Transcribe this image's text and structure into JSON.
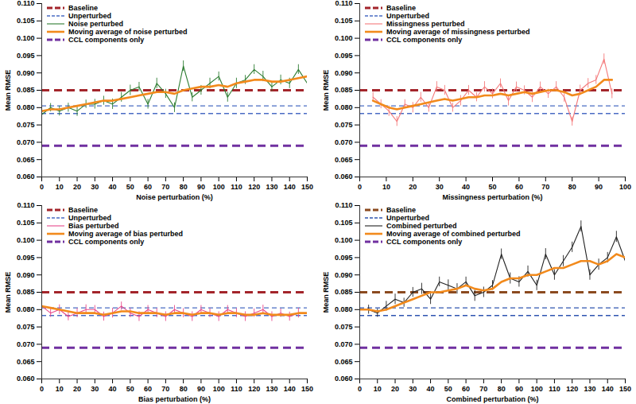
{
  "chart_data": [
    {
      "type": "line",
      "xlabel": "Noise perturbation (%)",
      "ylabel": "Mean RMSE",
      "legend": "top-left",
      "xlim": [
        0,
        150
      ],
      "xticks": [
        0,
        10,
        20,
        30,
        40,
        50,
        60,
        70,
        80,
        90,
        100,
        110,
        120,
        130,
        140,
        150
      ],
      "ylim": [
        0.06,
        0.11
      ],
      "yticks": [
        {
          "value": 0.06,
          "label": "0.060"
        },
        0.065,
        {
          "value": 0.07,
          "label": "0.070"
        },
        0.075,
        {
          "value": 0.08,
          "label": "0.080"
        },
        0.085,
        {
          "value": 0.09,
          "label": "0.090"
        },
        0.095,
        {
          "value": 0.1,
          "label": "0.100"
        },
        0.105,
        {
          "value": 0.11,
          "label": "0.110"
        }
      ],
      "series": [
        {
          "name": "Baseline",
          "type": "hline",
          "values": [
            0.085
          ],
          "color": "#a3252b",
          "line_style": "heavy_dashed"
        },
        {
          "name": "Unperturbed",
          "type": "hline",
          "values": [
            0.0805,
            0.0783
          ],
          "color": "#4a6cc4",
          "line_style": "dashed"
        },
        {
          "name": "Noise perturbed",
          "type": "line",
          "color": "#2e7d32",
          "line_style": "solid",
          "x": [
            0,
            5,
            10,
            15,
            20,
            25,
            30,
            35,
            40,
            45,
            50,
            55,
            60,
            65,
            70,
            75,
            80,
            85,
            90,
            95,
            100,
            105,
            110,
            115,
            120,
            125,
            130,
            135,
            140,
            145,
            150
          ],
          "values": [
            0.078,
            0.08,
            0.079,
            0.08,
            0.079,
            0.081,
            0.081,
            0.082,
            0.081,
            0.083,
            0.085,
            0.086,
            0.081,
            0.087,
            0.084,
            0.08,
            0.092,
            0.083,
            0.085,
            0.087,
            0.089,
            0.083,
            0.087,
            0.088,
            0.091,
            0.089,
            0.086,
            0.088,
            0.087,
            0.091,
            0.087
          ],
          "errors": [
            0.0015,
            0.0012,
            0.0014,
            0.0013,
            0.0015,
            0.0012,
            0.0014,
            0.0013,
            0.0015,
            0.0014,
            0.0015,
            0.0013,
            0.0014,
            0.0015,
            0.0013,
            0.0014,
            0.0015,
            0.0013,
            0.0014,
            0.0015,
            0.0013,
            0.0014,
            0.0015,
            0.0013,
            0.0014,
            0.0015,
            0.0013,
            0.0014,
            0.0015,
            0.0014,
            0.0015
          ]
        },
        {
          "name": "Moving average of noise perturbed",
          "type": "line",
          "color": "#f28a1c",
          "line_style": "thick",
          "x": [
            0,
            5,
            10,
            15,
            20,
            25,
            30,
            35,
            40,
            45,
            50,
            55,
            60,
            65,
            70,
            75,
            80,
            85,
            90,
            95,
            100,
            105,
            110,
            115,
            120,
            125,
            130,
            135,
            140,
            145,
            150
          ],
          "values": [
            0.079,
            0.0795,
            0.0795,
            0.08,
            0.0805,
            0.081,
            0.0815,
            0.082,
            0.082,
            0.0825,
            0.083,
            0.0835,
            0.084,
            0.0845,
            0.0845,
            0.084,
            0.085,
            0.0855,
            0.086,
            0.086,
            0.0865,
            0.086,
            0.087,
            0.0875,
            0.088,
            0.088,
            0.0875,
            0.0875,
            0.088,
            0.0885,
            0.089
          ]
        },
        {
          "name": "CCL components only",
          "type": "hline",
          "values": [
            0.069
          ],
          "color": "#7030a0",
          "line_style": "heavy_dashed"
        }
      ]
    },
    {
      "type": "line",
      "xlabel": "Missingness perturbation (%)",
      "ylabel": "Mean RMSE",
      "legend": "top-left",
      "xlim": [
        0,
        100
      ],
      "xticks": [
        0,
        10,
        20,
        30,
        40,
        50,
        60,
        70,
        80,
        90,
        100
      ],
      "ylim": [
        0.06,
        0.11
      ],
      "yticks": [
        {
          "value": 0.06,
          "label": "0.060"
        },
        0.065,
        {
          "value": 0.07,
          "label": "0.070"
        },
        0.075,
        {
          "value": 0.08,
          "label": "0.080"
        },
        0.085,
        {
          "value": 0.09,
          "label": "0.090"
        },
        0.095,
        {
          "value": 0.1,
          "label": "0.100"
        },
        0.105,
        {
          "value": 0.11,
          "label": "0.110"
        }
      ],
      "series": [
        {
          "name": "Baseline",
          "type": "hline",
          "values": [
            0.085
          ],
          "color": "#a3252b",
          "line_style": "heavy_dashed"
        },
        {
          "name": "Unperturbed",
          "type": "hline",
          "values": [
            0.0805,
            0.0783
          ],
          "color": "#4a6cc4",
          "line_style": "dashed"
        },
        {
          "name": "Missingness perturbed",
          "type": "line",
          "color": "#f4797a",
          "line_style": "solid",
          "x": [
            5,
            8,
            11,
            14,
            17,
            20,
            23,
            26,
            29,
            32,
            35,
            38,
            41,
            44,
            47,
            50,
            53,
            56,
            59,
            62,
            65,
            68,
            71,
            74,
            77,
            80,
            83,
            86,
            89,
            92,
            95
          ],
          "values": [
            0.083,
            0.081,
            0.079,
            0.076,
            0.081,
            0.08,
            0.083,
            0.08,
            0.086,
            0.085,
            0.08,
            0.082,
            0.085,
            0.083,
            0.086,
            0.084,
            0.087,
            0.082,
            0.086,
            0.085,
            0.083,
            0.086,
            0.084,
            0.086,
            0.083,
            0.076,
            0.085,
            0.087,
            0.088,
            0.094,
            0.084
          ],
          "errors": [
            0.0014,
            0.0013,
            0.0015,
            0.0014,
            0.0013,
            0.0015,
            0.0014,
            0.0013,
            0.0015,
            0.0014,
            0.0013,
            0.0015,
            0.0014,
            0.0013,
            0.0015,
            0.0014,
            0.0013,
            0.0015,
            0.0014,
            0.0013,
            0.0015,
            0.0014,
            0.0013,
            0.0015,
            0.0014,
            0.0013,
            0.0015,
            0.0014,
            0.0013,
            0.0015,
            0.0014
          ]
        },
        {
          "name": "Moving average of missingness perturbed",
          "type": "line",
          "color": "#f28a1c",
          "line_style": "thick",
          "x": [
            5,
            8,
            11,
            14,
            17,
            20,
            23,
            26,
            29,
            32,
            35,
            38,
            41,
            44,
            47,
            50,
            53,
            56,
            59,
            62,
            65,
            68,
            71,
            74,
            77,
            80,
            83,
            86,
            89,
            92,
            95
          ],
          "values": [
            0.082,
            0.081,
            0.08,
            0.0795,
            0.08,
            0.0805,
            0.081,
            0.0815,
            0.082,
            0.0825,
            0.082,
            0.0825,
            0.083,
            0.083,
            0.0835,
            0.0835,
            0.084,
            0.0835,
            0.084,
            0.0845,
            0.084,
            0.0845,
            0.085,
            0.085,
            0.0845,
            0.0835,
            0.084,
            0.085,
            0.086,
            0.088,
            0.088
          ]
        },
        {
          "name": "CCL components only",
          "type": "hline",
          "values": [
            0.069
          ],
          "color": "#7030a0",
          "line_style": "heavy_dashed"
        }
      ]
    },
    {
      "type": "line",
      "xlabel": "Bias perturbation (%)",
      "ylabel": "Mean RMSE",
      "legend": "top-left",
      "xlim": [
        0,
        150
      ],
      "xticks": [
        0,
        10,
        20,
        30,
        40,
        50,
        60,
        70,
        80,
        90,
        100,
        110,
        120,
        130,
        140,
        150
      ],
      "ylim": [
        0.06,
        0.11
      ],
      "yticks": [
        {
          "value": 0.06,
          "label": "0.060"
        },
        0.065,
        {
          "value": 0.07,
          "label": "0.070"
        },
        0.075,
        {
          "value": 0.08,
          "label": "0.080"
        },
        0.085,
        {
          "value": 0.09,
          "label": "0.090"
        },
        0.095,
        {
          "value": 0.1,
          "label": "0.100"
        },
        0.105,
        {
          "value": 0.11,
          "label": "0.110"
        }
      ],
      "series": [
        {
          "name": "Baseline",
          "type": "hline",
          "values": [
            0.085
          ],
          "color": "#a3252b",
          "line_style": "heavy_dashed"
        },
        {
          "name": "Unperturbed",
          "type": "hline",
          "values": [
            0.0805,
            0.0783
          ],
          "color": "#4a6cc4",
          "line_style": "dashed"
        },
        {
          "name": "Bias perturbed",
          "type": "line",
          "color": "#e8488a",
          "line_style": "solid",
          "x": [
            0,
            5,
            10,
            15,
            20,
            25,
            30,
            35,
            40,
            45,
            50,
            55,
            60,
            65,
            70,
            75,
            80,
            85,
            90,
            95,
            100,
            105,
            110,
            115,
            120,
            125,
            130,
            135,
            140,
            145,
            150
          ],
          "values": [
            0.081,
            0.079,
            0.08,
            0.078,
            0.079,
            0.08,
            0.08,
            0.078,
            0.079,
            0.081,
            0.079,
            0.078,
            0.08,
            0.079,
            0.078,
            0.08,
            0.079,
            0.078,
            0.08,
            0.079,
            0.078,
            0.08,
            0.079,
            0.078,
            0.079,
            0.08,
            0.078,
            0.079,
            0.078,
            0.079,
            0.079
          ],
          "errors": [
            0.0013,
            0.0012,
            0.0014,
            0.0012,
            0.0013,
            0.0014,
            0.0012,
            0.0013,
            0.0014,
            0.0012,
            0.0013,
            0.0014,
            0.0012,
            0.0013,
            0.0014,
            0.0012,
            0.0013,
            0.0014,
            0.0012,
            0.0013,
            0.0014,
            0.0012,
            0.0013,
            0.0014,
            0.0012,
            0.0013,
            0.0014,
            0.0012,
            0.0013,
            0.0014,
            0.0012
          ]
        },
        {
          "name": "Moving average of bias perturbed",
          "type": "line",
          "color": "#f28a1c",
          "line_style": "thick",
          "x": [
            0,
            5,
            10,
            15,
            20,
            25,
            30,
            35,
            40,
            45,
            50,
            55,
            60,
            65,
            70,
            75,
            80,
            85,
            90,
            95,
            100,
            105,
            110,
            115,
            120,
            125,
            130,
            135,
            140,
            145,
            150
          ],
          "values": [
            0.081,
            0.0805,
            0.08,
            0.0795,
            0.079,
            0.079,
            0.079,
            0.0785,
            0.079,
            0.0795,
            0.0795,
            0.079,
            0.079,
            0.079,
            0.0785,
            0.079,
            0.079,
            0.0785,
            0.079,
            0.079,
            0.0785,
            0.079,
            0.079,
            0.0785,
            0.0785,
            0.079,
            0.0785,
            0.0785,
            0.0785,
            0.079,
            0.079
          ]
        },
        {
          "name": "CCL components only",
          "type": "hline",
          "values": [
            0.069
          ],
          "color": "#7030a0",
          "line_style": "heavy_dashed"
        }
      ]
    },
    {
      "type": "line",
      "xlabel": "Combined perturbation (%)",
      "ylabel": "Mean RMSE",
      "legend": "top-left",
      "xlim": [
        0,
        150
      ],
      "xticks": [
        0,
        10,
        20,
        30,
        40,
        50,
        60,
        70,
        80,
        90,
        100,
        110,
        120,
        130,
        140,
        150
      ],
      "ylim": [
        0.06,
        0.11
      ],
      "yticks": [
        {
          "value": 0.06,
          "label": "0.060"
        },
        0.065,
        {
          "value": 0.07,
          "label": "0.070"
        },
        0.075,
        {
          "value": 0.08,
          "label": "0.080"
        },
        0.085,
        {
          "value": 0.09,
          "label": "0.090"
        },
        0.095,
        {
          "value": 0.1,
          "label": "0.100"
        },
        0.105,
        {
          "value": 0.11,
          "label": "0.110"
        }
      ],
      "series": [
        {
          "name": "Baseline",
          "type": "hline",
          "values": [
            0.085
          ],
          "color": "#8b4a1f",
          "line_style": "heavy_dashed"
        },
        {
          "name": "Unperturbed",
          "type": "hline",
          "values": [
            0.0805,
            0.0783
          ],
          "color": "#2f55b0",
          "line_style": "dashed"
        },
        {
          "name": "Combined perturbed",
          "type": "line",
          "color": "#222222",
          "line_style": "solid",
          "x": [
            0,
            5,
            10,
            15,
            20,
            25,
            30,
            35,
            40,
            45,
            50,
            55,
            60,
            65,
            70,
            75,
            80,
            85,
            90,
            95,
            100,
            105,
            110,
            115,
            120,
            125,
            130,
            135,
            140,
            145,
            150
          ],
          "values": [
            0.08,
            0.08,
            0.079,
            0.081,
            0.083,
            0.082,
            0.085,
            0.086,
            0.083,
            0.088,
            0.087,
            0.086,
            0.088,
            0.084,
            0.085,
            0.087,
            0.096,
            0.089,
            0.088,
            0.091,
            0.087,
            0.096,
            0.09,
            0.094,
            0.098,
            0.104,
            0.09,
            0.093,
            0.095,
            0.101,
            0.094
          ],
          "errors": [
            0.0012,
            0.0013,
            0.0012,
            0.0014,
            0.0015,
            0.0013,
            0.0014,
            0.0016,
            0.0015,
            0.0014,
            0.0016,
            0.0015,
            0.0014,
            0.0016,
            0.0015,
            0.0014,
            0.0015,
            0.0016,
            0.0015,
            0.0016,
            0.0015,
            0.0016,
            0.0015,
            0.0016,
            0.0015,
            0.0016,
            0.0015,
            0.0016,
            0.0015,
            0.0016,
            0.0015
          ]
        },
        {
          "name": "Moving average of combined perturbed",
          "type": "line",
          "color": "#f28a1c",
          "line_style": "thick",
          "x": [
            0,
            5,
            10,
            15,
            20,
            25,
            30,
            35,
            40,
            45,
            50,
            55,
            60,
            65,
            70,
            75,
            80,
            85,
            90,
            95,
            100,
            105,
            110,
            115,
            120,
            125,
            130,
            135,
            140,
            145,
            150
          ],
          "values": [
            0.08,
            0.08,
            0.0795,
            0.08,
            0.081,
            0.082,
            0.083,
            0.084,
            0.085,
            0.085,
            0.0855,
            0.086,
            0.087,
            0.086,
            0.0855,
            0.086,
            0.088,
            0.089,
            0.089,
            0.09,
            0.09,
            0.091,
            0.092,
            0.092,
            0.093,
            0.094,
            0.094,
            0.093,
            0.094,
            0.096,
            0.095
          ]
        },
        {
          "name": "CCL components only",
          "type": "hline",
          "values": [
            0.069
          ],
          "color": "#7030a0",
          "line_style": "heavy_dashed"
        }
      ]
    }
  ]
}
